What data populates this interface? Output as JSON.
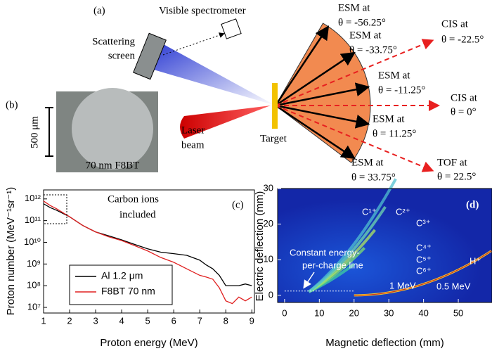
{
  "diagram": {
    "label_a": "(a)",
    "spectrometer": "Visible spectrometer",
    "screen": [
      "Scattering",
      "screen"
    ],
    "laser": [
      "Laser",
      "beam"
    ],
    "target": "Target",
    "esm": [
      [
        "ESM at",
        "θ = -56.25°"
      ],
      [
        "ESM at",
        "θ = -33.75°"
      ],
      [
        "ESM at",
        "θ = -11.25°"
      ],
      [
        "ESM at",
        "θ = 11.25°"
      ],
      [
        "ESM at",
        "θ = 33.75°"
      ]
    ],
    "cis": [
      [
        "CIS at",
        "θ = -22.5°"
      ],
      [
        "CIS at",
        "θ = 0°"
      ]
    ],
    "tof": [
      "TOF at",
      "θ = 22.5°"
    ],
    "label_b": "(b)",
    "scale": "500 μm",
    "sample": "70 nm F8BT"
  },
  "chart_data": [
    {
      "type": "line",
      "label": "(c)",
      "xlabel": "Proton energy (MeV)",
      "ylabel": "Proton number (MeV⁻¹sr⁻¹)",
      "log_y": true,
      "annotation": [
        "Carbon ions",
        "included"
      ],
      "legend": "lower left",
      "x": [
        1,
        1.25,
        1.5,
        2,
        2.5,
        3,
        3.5,
        4,
        4.5,
        5,
        5.5,
        6,
        6.5,
        7,
        7.25,
        7.5,
        7.75,
        8,
        8.25,
        8.5,
        8.75,
        9
      ],
      "series": [
        {
          "name": "Al 1.2 μm",
          "color": "#000000",
          "values": [
            600000000000.0,
            400000000000.0,
            300000000000.0,
            150000000000.0,
            60000000000.0,
            30000000000.0,
            20000000000.0,
            13000000000.0,
            8000000000.0,
            5000000000.0,
            3500000000.0,
            3000000000.0,
            2500000000.0,
            1500000000.0,
            900000000.0,
            600000000.0,
            300000000.0,
            100000000.0,
            100000000.0,
            100000000.0,
            120000000.0,
            100000000.0
          ]
        },
        {
          "name": "F8BT 70 nm",
          "color": "#e02020",
          "values": [
            800000000000.0,
            500000000000.0,
            350000000000.0,
            150000000000.0,
            60000000000.0,
            30000000000.0,
            18000000000.0,
            12000000000.0,
            7000000000.0,
            4000000000.0,
            2000000000.0,
            1200000000.0,
            600000000.0,
            300000000.0,
            250000000.0,
            200000000.0,
            80000000.0,
            20000000.0,
            15000000.0,
            30000000.0,
            20000000.0,
            30000000.0
          ]
        }
      ],
      "xlim": [
        1,
        9.1
      ],
      "xticks": [
        1,
        2,
        3,
        4,
        5,
        6,
        7,
        8,
        9
      ],
      "ylim": [
        5500000.0,
        2600000000000.0
      ],
      "yticks": [
        {
          "value": 10000000.0,
          "label": "10⁷"
        },
        {
          "value": 100000000.0,
          "label": "10⁸"
        },
        {
          "value": 1000000000.0,
          "label": "10⁹"
        },
        {
          "value": 10000000000.0,
          "label": "10¹⁰"
        },
        {
          "value": 100000000000.0,
          "label": "10¹¹"
        },
        {
          "value": 1000000000000.0,
          "label": "10¹²"
        }
      ]
    },
    {
      "type": "image",
      "label": "(d)",
      "xlabel": "Magnetic deflection (mm)",
      "ylabel": "Electric deflection (mm)",
      "xlim": [
        -2,
        59.7
      ],
      "xticks": [
        0,
        10,
        20,
        30,
        40,
        50
      ],
      "ylim": [
        -2,
        30
      ],
      "yticks": [
        0,
        10,
        20,
        30
      ],
      "ions": [
        "C¹⁺",
        "C²⁺",
        "C³⁺",
        "C⁴⁺",
        "C⁵⁺",
        "C⁶⁺",
        "H⁺"
      ],
      "energies": [
        "0.5 MeV",
        "1 MeV"
      ],
      "line_note": [
        "Constant energy-",
        "per-charge line"
      ]
    }
  ]
}
